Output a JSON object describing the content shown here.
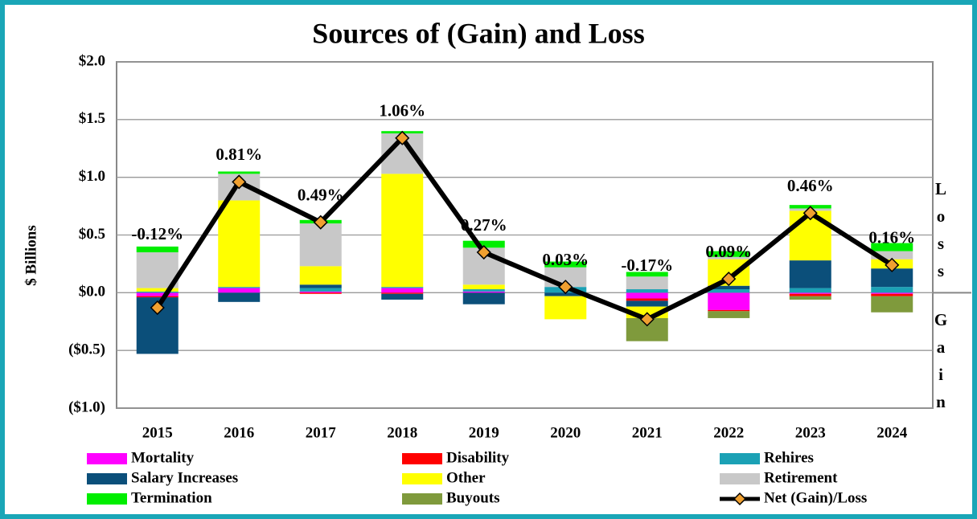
{
  "chart_data": {
    "type": "bar",
    "stacked": true,
    "title": "Sources of (Gain) and Loss",
    "y_label": "$ Billions",
    "annotations": [
      "Loss",
      "Gain"
    ],
    "categories": [
      "2015",
      "2016",
      "2017",
      "2018",
      "2019",
      "2020",
      "2021",
      "2022",
      "2023",
      "2024"
    ],
    "ylim": [
      -1.0,
      2.0
    ],
    "yticks": [
      {
        "value": -1.0,
        "label": "($1.0)"
      },
      {
        "value": -0.5,
        "label": "($0.5)"
      },
      {
        "value": 0,
        "label": "$0.0"
      },
      {
        "value": 0.5,
        "label": "$0.5"
      },
      {
        "value": 1.0,
        "label": "$1.0"
      },
      {
        "value": 1.5,
        "label": "$1.5"
      },
      {
        "value": 2.0,
        "label": "$2.0"
      }
    ],
    "grid": true,
    "series": [
      {
        "name": "Mortality",
        "color": "#ff00ff",
        "values": [
          -0.03,
          0.04,
          0.01,
          0.04,
          0.01,
          0,
          -0.05,
          -0.15,
          -0.01,
          -0.01
        ]
      },
      {
        "name": "Disability",
        "color": "#ff0000",
        "values": [
          -0.01,
          0,
          -0.01,
          -0.01,
          0,
          0,
          -0.02,
          -0.01,
          -0.02,
          -0.02
        ]
      },
      {
        "name": "Rehires",
        "color": "#1ba1b5",
        "values": [
          0.01,
          0.01,
          0.03,
          0.01,
          0.02,
          0.05,
          0.03,
          0.03,
          0.04,
          0.05
        ]
      },
      {
        "name": "Salary Increases",
        "color": "#0b4f7a",
        "values": [
          -0.49,
          -0.08,
          0.03,
          -0.05,
          -0.1,
          -0.03,
          -0.05,
          0.03,
          0.24,
          0.16
        ]
      },
      {
        "name": "Other",
        "color": "#ffff00",
        "values": [
          0.03,
          0.75,
          0.16,
          0.98,
          0.04,
          -0.2,
          -0.1,
          0.23,
          0.43,
          0.08
        ]
      },
      {
        "name": "Retirement",
        "color": "#c8c8c8",
        "values": [
          0.31,
          0.23,
          0.37,
          0.35,
          0.32,
          0.17,
          0.11,
          0.02,
          0.02,
          0.07
        ]
      },
      {
        "name": "Termination",
        "color": "#00ee00",
        "values": [
          0.05,
          0.02,
          0.03,
          0.02,
          0.06,
          0.05,
          0.04,
          0.05,
          0.03,
          0.07
        ]
      },
      {
        "name": "Buyouts",
        "color": "#7f9a3c",
        "values": [
          0,
          0,
          0,
          0,
          0,
          0,
          -0.2,
          -0.06,
          -0.03,
          -0.14
        ]
      },
      {
        "name": "Net (Gain)/Loss",
        "type": "line",
        "color": "#000000",
        "marker_color": "#f0a030",
        "values": [
          -0.13,
          0.96,
          0.61,
          1.34,
          0.35,
          0.05,
          -0.23,
          0.12,
          0.69,
          0.24
        ],
        "percent_values": [
          -0.12,
          0.81,
          0.49,
          1.06,
          0.27,
          0.03,
          -0.17,
          0.09,
          0.46,
          0.16
        ],
        "percent_labels": [
          "-0.12%",
          "0.81%",
          "0.49%",
          "1.06%",
          "0.27%",
          "0.03%",
          "-0.17%",
          "0.09%",
          "0.46%",
          "0.16%"
        ]
      }
    ]
  }
}
